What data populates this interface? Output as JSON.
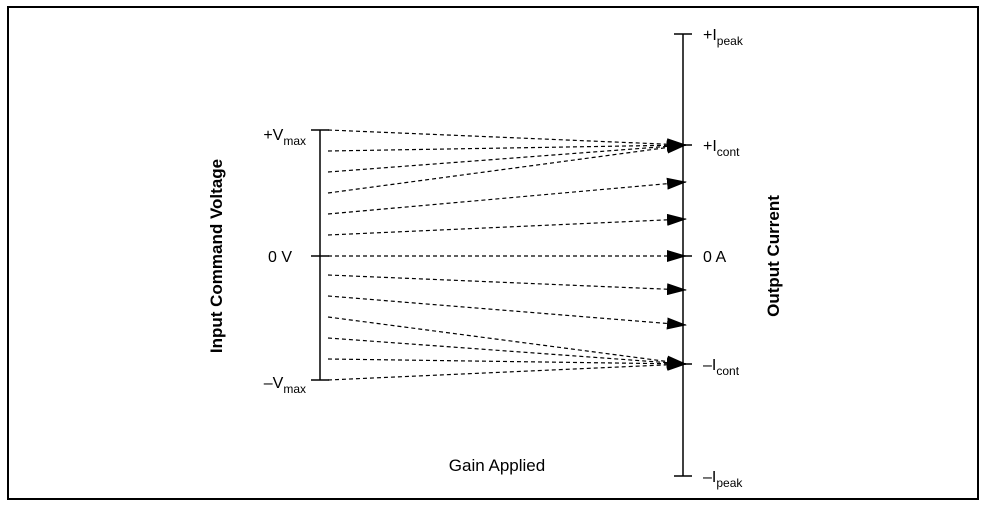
{
  "diagram": {
    "left_axis": {
      "title": "Input Command Voltage",
      "ticks": [
        {
          "main": "+V",
          "sub": "max"
        },
        {
          "main": "0 V",
          "sub": ""
        },
        {
          "main": "–V",
          "sub": "max"
        }
      ]
    },
    "right_axis": {
      "title": "Output Current",
      "ticks": [
        {
          "main": "+I",
          "sub": "peak"
        },
        {
          "main": "+I",
          "sub": "cont"
        },
        {
          "main": "0 A",
          "sub": ""
        },
        {
          "main": "–I",
          "sub": "cont"
        },
        {
          "main": "–I",
          "sub": "peak"
        }
      ]
    },
    "caption": "Gain Applied"
  },
  "colors": {
    "stroke": "#000000",
    "background": "#ffffff"
  }
}
